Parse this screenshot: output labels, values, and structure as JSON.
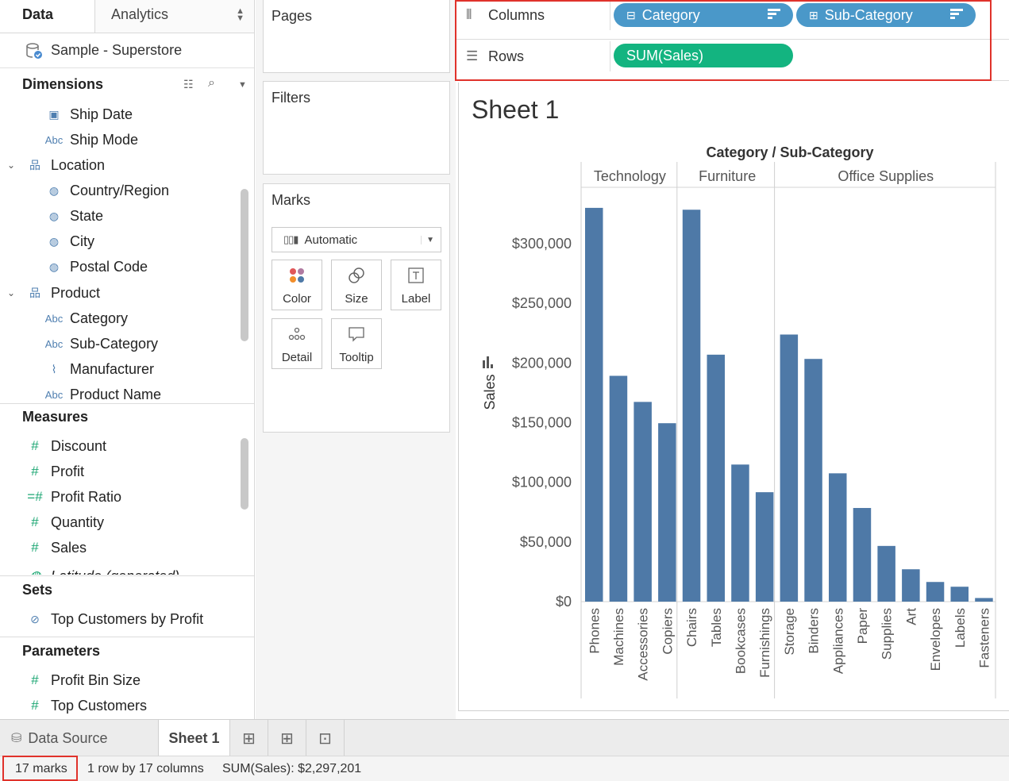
{
  "data_pane": {
    "tab_data": "Data",
    "tab_analytics": "Analytics",
    "datasource": "Sample - Superstore",
    "dimensions_title": "Dimensions",
    "dimensions": [
      {
        "label": "Ship Date",
        "icon": "calendar-icon"
      },
      {
        "label": "Ship Mode",
        "icon": "abc-icon"
      },
      {
        "label": "Location",
        "icon": "hierarchy-icon"
      },
      {
        "label": "Country/Region",
        "icon": "globe-icon"
      },
      {
        "label": "State",
        "icon": "globe-icon"
      },
      {
        "label": "City",
        "icon": "globe-icon"
      },
      {
        "label": "Postal Code",
        "icon": "globe-icon"
      },
      {
        "label": "Product",
        "icon": "hierarchy-icon"
      },
      {
        "label": "Category",
        "icon": "abc-icon"
      },
      {
        "label": "Sub-Category",
        "icon": "abc-icon"
      },
      {
        "label": "Manufacturer",
        "icon": "paperclip-icon"
      },
      {
        "label": "Product Name",
        "icon": "abc-icon"
      }
    ],
    "abc_text": "Abc",
    "measures_title": "Measures",
    "measures": [
      {
        "label": "Discount"
      },
      {
        "label": "Profit"
      },
      {
        "label": "Profit Ratio"
      },
      {
        "label": "Quantity"
      },
      {
        "label": "Sales"
      },
      {
        "label": "Latitude (generated)"
      }
    ],
    "sets_title": "Sets",
    "sets": [
      {
        "label": "Top Customers by Profit"
      }
    ],
    "parameters_title": "Parameters",
    "parameters": [
      {
        "label": "Profit Bin Size"
      },
      {
        "label": "Top Customers"
      }
    ]
  },
  "cards": {
    "pages": "Pages",
    "filters": "Filters",
    "marks": "Marks",
    "mark_type": "Automatic",
    "buttons": {
      "color": "Color",
      "size": "Size",
      "label": "Label",
      "detail": "Detail",
      "tooltip": "Tooltip"
    }
  },
  "shelves": {
    "columns_label": "Columns",
    "rows_label": "Rows",
    "columns_pills": [
      "Category",
      "Sub-Category"
    ],
    "rows_pills": [
      "SUM(Sales)"
    ]
  },
  "sheet": {
    "title": "Sheet 1"
  },
  "chart_data": {
    "type": "bar",
    "title": "Category / Sub-Category",
    "ylabel": "Sales",
    "ylim": [
      0,
      360000
    ],
    "yticks": [
      0,
      50000,
      100000,
      150000,
      200000,
      250000,
      300000
    ],
    "ytick_labels": [
      "$0",
      "$50,000",
      "$100,000",
      "$150,000",
      "$200,000",
      "$250,000",
      "$300,000"
    ],
    "bar_color": "#4e79a7",
    "groups": [
      {
        "name": "Technology",
        "categories": [
          "Phones",
          "Machines",
          "Accessories",
          "Copiers"
        ],
        "values": [
          330007,
          189239,
          167380,
          149528
        ]
      },
      {
        "name": "Furniture",
        "categories": [
          "Chairs",
          "Tables",
          "Bookcases",
          "Furnishings"
        ],
        "values": [
          328449,
          206966,
          114880,
          91705
        ]
      },
      {
        "name": "Office Supplies",
        "categories": [
          "Storage",
          "Binders",
          "Appliances",
          "Paper",
          "Supplies",
          "Art",
          "Envelopes",
          "Labels",
          "Fasteners"
        ],
        "values": [
          223844,
          203413,
          107532,
          78479,
          46674,
          27119,
          16476,
          12486,
          3024
        ]
      }
    ]
  },
  "bottom_tabs": {
    "data_source": "Data Source",
    "sheet": "Sheet 1"
  },
  "status": {
    "marks": "17 marks",
    "dims": "1 row by 17 columns",
    "sum": "SUM(Sales): $2,297,201"
  },
  "colors": {
    "accent_blue_pill": "#4a98c9",
    "accent_green_pill": "#13b480",
    "highlight_red": "#e0322b"
  }
}
